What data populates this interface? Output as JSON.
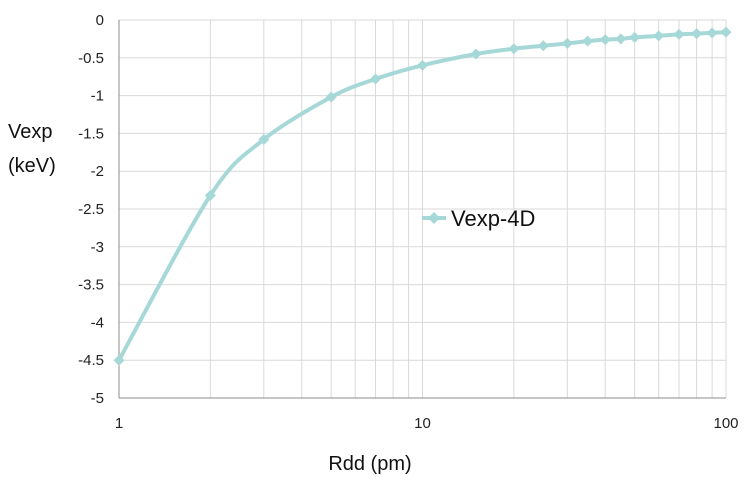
{
  "chart_data": {
    "type": "line",
    "xscale": "log",
    "xlim": [
      1,
      100
    ],
    "ylim": [
      -5,
      0
    ],
    "x_ticks": [
      {
        "value": 1,
        "label": "1"
      },
      {
        "value": 10,
        "label": "10"
      },
      {
        "value": 100,
        "label": "100"
      }
    ],
    "y_ticks": [
      {
        "value": 0,
        "label": "0"
      },
      {
        "value": -0.5,
        "label": "-0.5"
      },
      {
        "value": -1,
        "label": "-1"
      },
      {
        "value": -1.5,
        "label": "-1.5"
      },
      {
        "value": -2,
        "label": "-2"
      },
      {
        "value": -2.5,
        "label": "-2.5"
      },
      {
        "value": -3,
        "label": "-3"
      },
      {
        "value": -3.5,
        "label": "-3.5"
      },
      {
        "value": -4,
        "label": "-4"
      },
      {
        "value": -4.5,
        "label": "-4.5"
      },
      {
        "value": -5,
        "label": "-5"
      }
    ],
    "xlabel": "Rdd (pm)",
    "ylabel_lines": [
      "Vexp",
      "(keV)"
    ],
    "grid": true,
    "legend_position": "center-right",
    "series": [
      {
        "name": "Vexp-4D",
        "color": "#a6d8d8",
        "marker": "diamond",
        "points": [
          {
            "x": 1,
            "y": -4.5
          },
          {
            "x": 2,
            "y": -2.32
          },
          {
            "x": 3,
            "y": -1.58
          },
          {
            "x": 5,
            "y": -1.02
          },
          {
            "x": 7,
            "y": -0.78
          },
          {
            "x": 10,
            "y": -0.6
          },
          {
            "x": 15,
            "y": -0.45
          },
          {
            "x": 20,
            "y": -0.38
          },
          {
            "x": 25,
            "y": -0.34
          },
          {
            "x": 30,
            "y": -0.31
          },
          {
            "x": 35,
            "y": -0.28
          },
          {
            "x": 40,
            "y": -0.26
          },
          {
            "x": 45,
            "y": -0.25
          },
          {
            "x": 50,
            "y": -0.23
          },
          {
            "x": 60,
            "y": -0.21
          },
          {
            "x": 70,
            "y": -0.19
          },
          {
            "x": 80,
            "y": -0.18
          },
          {
            "x": 90,
            "y": -0.17
          },
          {
            "x": 100,
            "y": -0.16
          }
        ]
      }
    ]
  }
}
